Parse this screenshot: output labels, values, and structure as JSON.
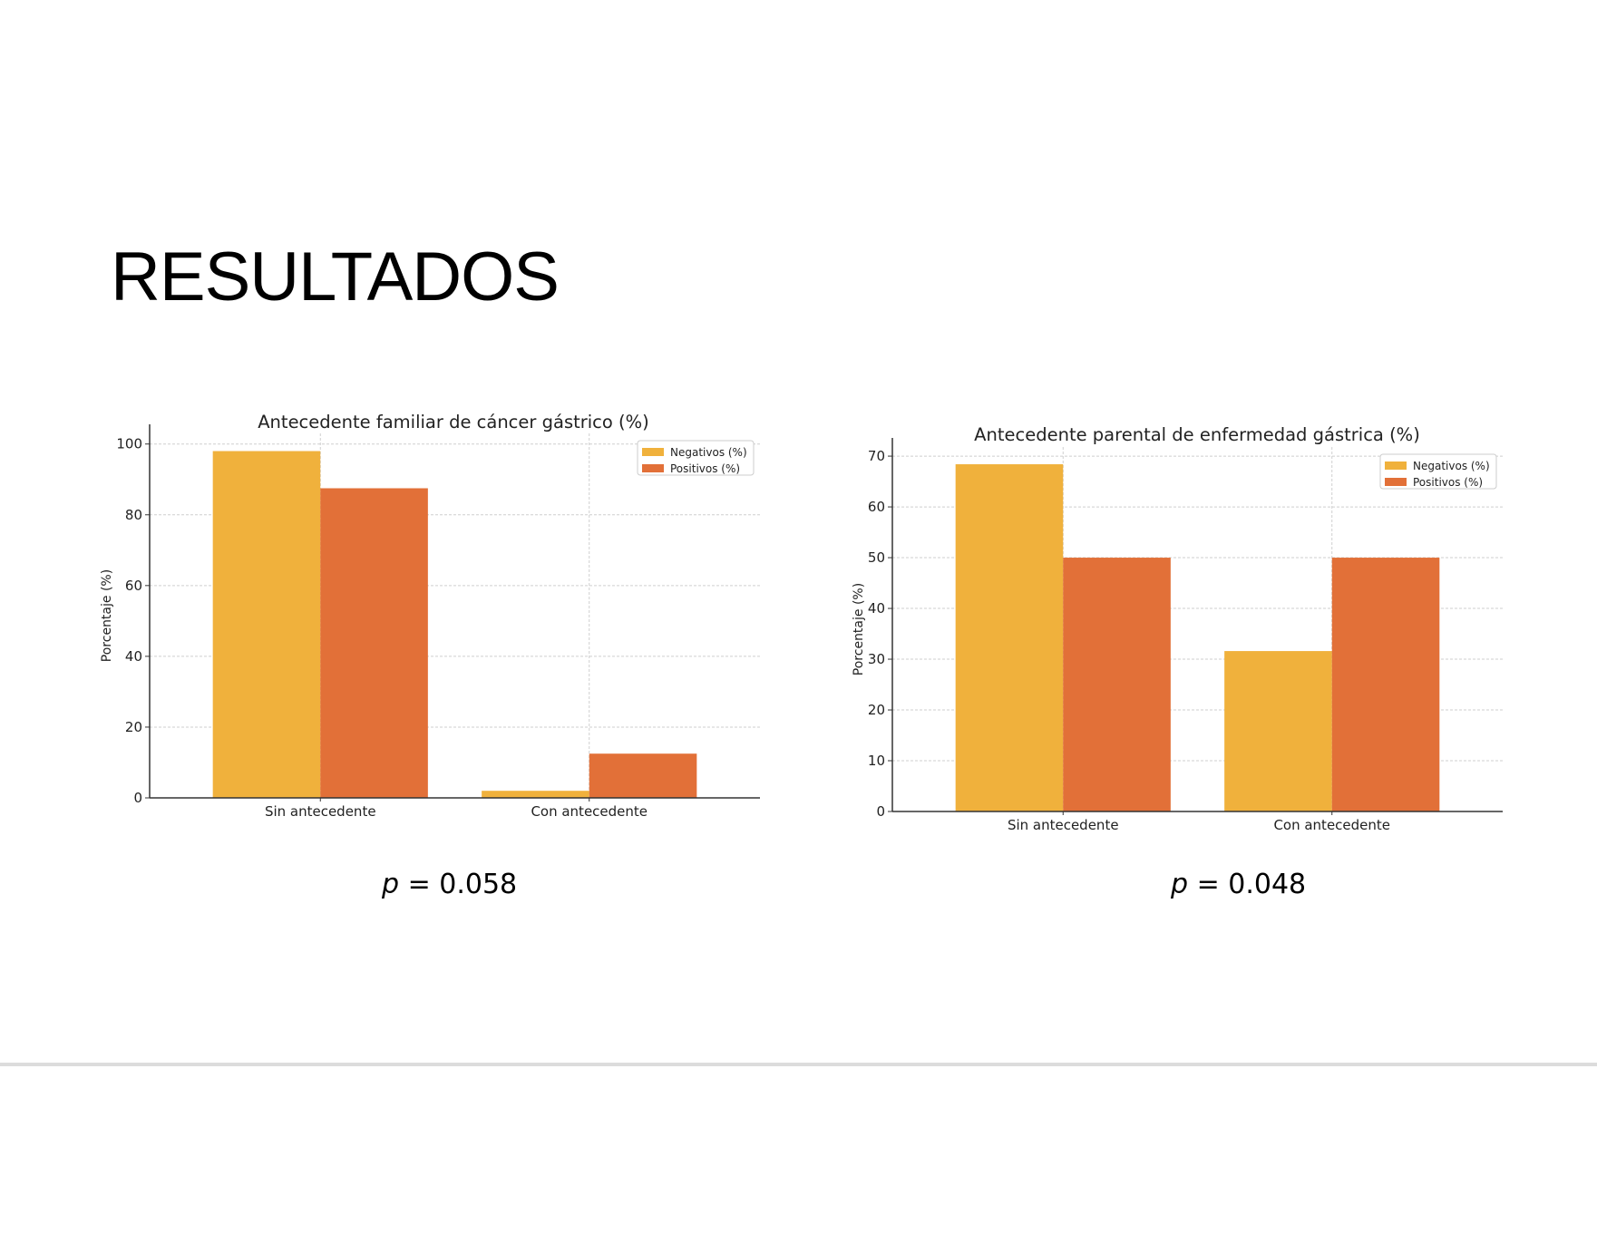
{
  "slide": {
    "title": "RESULTADOS"
  },
  "colors": {
    "negativos": "#F0B13C",
    "positivos": "#E27038"
  },
  "pvalues": [
    {
      "symbol": "p",
      "text": " = 0.058"
    },
    {
      "symbol": "p",
      "text": " = 0.048"
    }
  ],
  "chart_data": [
    {
      "type": "bar",
      "title": "Antecedente familiar de cáncer gástrico (%)",
      "ylabel": "Porcentaje (%)",
      "xlabel": "",
      "categories": [
        "Sin antecedente",
        "Con antecedente"
      ],
      "series": [
        {
          "name": "Negativos (%)",
          "values": [
            98,
            2
          ]
        },
        {
          "name": "Positivos (%)",
          "values": [
            87.5,
            12.5
          ]
        }
      ],
      "ylim": [
        0,
        103
      ],
      "yticks": [
        0,
        20,
        40,
        60,
        80,
        100
      ],
      "grid": true,
      "legend": "top-right"
    },
    {
      "type": "bar",
      "title": "Antecedente parental de enfermedad gástrica (%)",
      "ylabel": "Porcentaje (%)",
      "xlabel": "",
      "categories": [
        "Sin antecedente",
        "Con antecedente"
      ],
      "series": [
        {
          "name": "Negativos (%)",
          "values": [
            68.4,
            31.6
          ]
        },
        {
          "name": "Positivos (%)",
          "values": [
            50,
            50
          ]
        }
      ],
      "ylim": [
        0,
        71.8
      ],
      "yticks": [
        0,
        10,
        20,
        30,
        40,
        50,
        60,
        70
      ],
      "grid": true,
      "legend": "top-right"
    }
  ]
}
